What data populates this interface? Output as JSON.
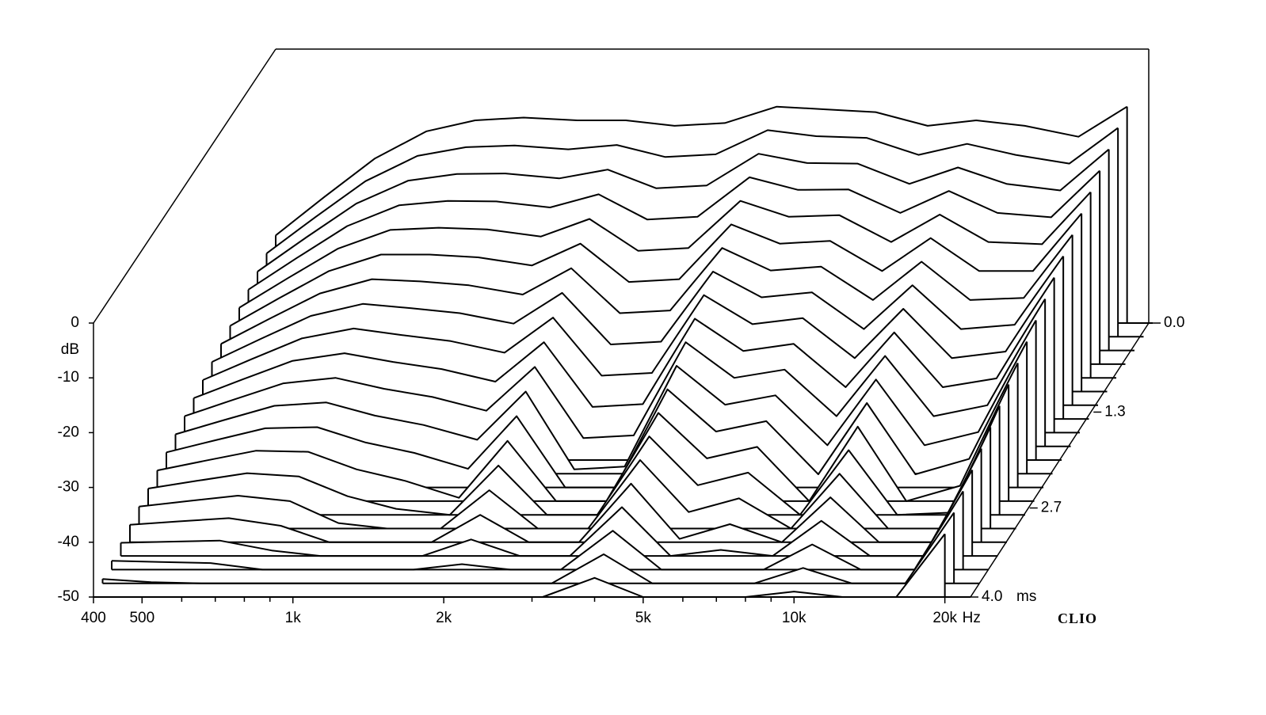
{
  "chart_data": {
    "type": "waterfall",
    "x": [
      400,
      500,
      630,
      800,
      1000,
      1250,
      1600,
      2000,
      2500,
      3150,
      4000,
      5000,
      6300,
      8000,
      10000,
      12500,
      16000,
      20000
    ],
    "xlim": [
      400,
      22500
    ],
    "log_x": true,
    "xticks": [
      400,
      500,
      {
        "value": 1000,
        "label": "1k"
      },
      {
        "value": 2000,
        "label": "2k"
      },
      {
        "value": 5000,
        "label": "5k"
      },
      {
        "value": 10000,
        "label": "10k"
      },
      {
        "value": 20000,
        "label": "20k"
      }
    ],
    "xminor": [
      600,
      700,
      800,
      900,
      3000,
      4000,
      6000,
      7000,
      8000,
      9000
    ],
    "x_unit": "Hz",
    "ylim": [
      -50,
      0
    ],
    "yticks": [
      0,
      -10,
      -20,
      -30,
      -40,
      -50
    ],
    "y_label": "dB",
    "zlim": [
      0,
      4
    ],
    "zticks": [
      {
        "value": 0,
        "label": "0.0"
      },
      1.3,
      2.7,
      {
        "value": 4,
        "label": "4.0"
      }
    ],
    "z_unit": "ms",
    "brand": "CLIO",
    "color": "#000000",
    "z": [
      0,
      0.2,
      0.4,
      0.6,
      0.8,
      1,
      1.2,
      1.4,
      1.6,
      1.8,
      2,
      2.2,
      2.4,
      2.6,
      2.8,
      3,
      3.2,
      3.4,
      3.6,
      3.8,
      4
    ],
    "series": [
      {
        "values": [
          -34,
          -27,
          -20,
          -15,
          -13,
          -12.5,
          -13,
          -13,
          -14,
          -13.5,
          -10.5,
          -11,
          -11.5,
          -14,
          -13,
          -14,
          -16,
          -10.5
        ]
      },
      {
        "values": [
          -34.8,
          -28.2,
          -21.6,
          -17,
          -15.4,
          -15.1,
          -15.8,
          -15,
          -17.2,
          -16.7,
          -12.3,
          -13.4,
          -13.7,
          -16.8,
          -14.8,
          -16.8,
          -18.4,
          -11.9
        ]
      },
      {
        "values": [
          -35.6,
          -29.4,
          -23.2,
          -19,
          -17.8,
          -17.7,
          -18.6,
          -17,
          -20.4,
          -19.9,
          -14.1,
          -15.8,
          -15.9,
          -19.6,
          -16.6,
          -19.6,
          -20.8,
          -13.3
        ]
      },
      {
        "values": [
          -36.4,
          -30.6,
          -24.8,
          -21,
          -20.2,
          -20.3,
          -21.4,
          -19,
          -23.6,
          -23.1,
          -15.9,
          -18.2,
          -18.1,
          -22.4,
          -18.4,
          -22.4,
          -23.2,
          -14.7
        ]
      },
      {
        "values": [
          -37.2,
          -31.8,
          -26.4,
          -23,
          -22.6,
          -22.9,
          -24.2,
          -21,
          -26.8,
          -26.3,
          -17.7,
          -20.6,
          -20.3,
          -25.2,
          -20.2,
          -25.2,
          -25.6,
          -16.1
        ]
      },
      {
        "values": [
          -38,
          -33,
          -28,
          -25,
          -25,
          -25.5,
          -27,
          -23,
          -30,
          -29.5,
          -19.5,
          -23,
          -22.5,
          -28,
          -22,
          -28,
          -28,
          -17.5
        ]
      },
      {
        "values": [
          -38.8,
          -34.2,
          -29.6,
          -27,
          -27.4,
          -28.1,
          -29.8,
          -25,
          -33.2,
          -32.7,
          -21.3,
          -25.4,
          -24.7,
          -30.8,
          -23.8,
          -30.8,
          -30.4,
          -18.9
        ]
      },
      {
        "values": [
          -39.6,
          -35.4,
          -31.2,
          -29,
          -29.8,
          -30.7,
          -32.6,
          -27,
          -36.4,
          -35.9,
          -23.1,
          -27.8,
          -26.9,
          -33.6,
          -25.6,
          -33.6,
          -32.8,
          -20.3
        ]
      },
      {
        "values": [
          -40.4,
          -36.6,
          -32.8,
          -31,
          -32.2,
          -33.3,
          -35.4,
          -29,
          -39.6,
          -39.1,
          -24.9,
          -30.2,
          -29.1,
          -36.4,
          -27.4,
          -36.4,
          -35.2,
          -21.7
        ]
      },
      {
        "values": [
          -41.2,
          -37.8,
          -34.4,
          -33,
          -34.6,
          -35.9,
          -38.2,
          -31,
          -42.8,
          -42.3,
          -26.7,
          -32.6,
          -31.3,
          -39.2,
          -29.2,
          -39.2,
          -37.6,
          -23.1
        ]
      },
      {
        "values": [
          -42,
          -39,
          -36,
          -35,
          -37,
          -38.5,
          -41,
          -33,
          -46,
          -45.5,
          -28.5,
          -35,
          -33.5,
          -42,
          -31,
          -42,
          -40,
          -24.5
        ]
      },
      {
        "values": [
          -42.8,
          -40.2,
          -37.6,
          -37,
          -39.4,
          -41.1,
          -43.8,
          -35,
          -49.2,
          -48.7,
          -30.3,
          -37.4,
          -35.7,
          -44.8,
          -32.8,
          -44.8,
          -42.4,
          -25.9
        ]
      },
      {
        "values": [
          -43.6,
          -41.4,
          -39.2,
          -39,
          -41.8,
          -43.7,
          -46.6,
          -37,
          -50,
          -50,
          -32.1,
          -39.8,
          -37.9,
          -47.6,
          -34.6,
          -47.6,
          -44.8,
          -27.3
        ]
      },
      {
        "values": [
          -44.4,
          -42.6,
          -40.8,
          -41,
          -44.2,
          -46.3,
          -49.4,
          -39,
          -50,
          -50,
          -33.9,
          -42.2,
          -40.1,
          -50,
          -36.4,
          -50,
          -47.2,
          -28.7
        ]
      },
      {
        "values": [
          -45.2,
          -43.8,
          -42.4,
          -43,
          -46.6,
          -48.9,
          -50,
          -41,
          -50,
          -50,
          -35.7,
          -44.6,
          -42.3,
          -50,
          -38.2,
          -50,
          -49.6,
          -30.1
        ]
      },
      {
        "values": [
          -46,
          -45,
          -44,
          -45,
          -49,
          -50,
          -50,
          -43,
          -50,
          -50,
          -37.5,
          -47,
          -44.5,
          -50,
          -40,
          -50,
          -50,
          -31.5
        ]
      },
      {
        "values": [
          -46.8,
          -46.2,
          -45.6,
          -47,
          -50,
          -50,
          -50,
          -45,
          -50,
          -50,
          -39.3,
          -49.4,
          -46.7,
          -50,
          -41.8,
          -50,
          -50,
          -32.9
        ]
      },
      {
        "values": [
          -47.6,
          -47.4,
          -47.2,
          -49,
          -50,
          -50,
          -50,
          -47,
          -50,
          -50,
          -41.1,
          -50,
          -48.9,
          -50,
          -43.6,
          -50,
          -50,
          -34.3
        ]
      },
      {
        "values": [
          -48.4,
          -48.6,
          -48.8,
          -50,
          -50,
          -50,
          -50,
          -49,
          -50,
          -50,
          -42.9,
          -50,
          -50,
          -50,
          -45.4,
          -50,
          -50,
          -35.7
        ]
      },
      {
        "values": [
          -49.2,
          -49.8,
          -50,
          -50,
          -50,
          -50,
          -50,
          -50,
          -50,
          -50,
          -44.7,
          -50,
          -50,
          -50,
          -47.2,
          -50,
          -50,
          -37.1
        ]
      },
      {
        "values": [
          -50,
          -50,
          -50,
          -50,
          -50,
          -50,
          -50,
          -50,
          -50,
          -50,
          -46.5,
          -50,
          -50,
          -50,
          -49,
          -50,
          -50,
          -38.5
        ]
      }
    ]
  }
}
